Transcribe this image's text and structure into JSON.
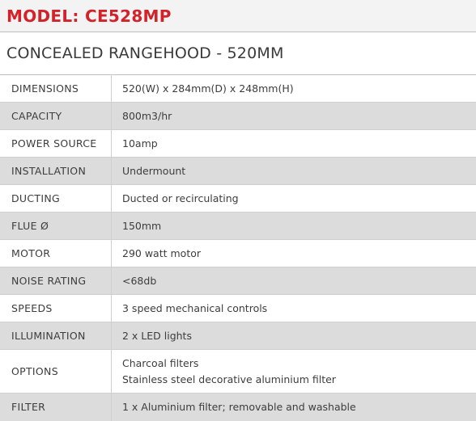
{
  "model": {
    "title": "MODEL: CE528MP"
  },
  "product": {
    "title": "CONCEALED RANGEHOOD - 520MM"
  },
  "colors": {
    "accent": "#d2232a",
    "row_shade": "#dcdcdc",
    "header_bg": "#f3f3f3"
  },
  "specs": [
    {
      "label": "DIMENSIONS",
      "value": "520(W) x 284mm(D) x 248mm(H)"
    },
    {
      "label": "CAPACITY",
      "value": "800m3/hr"
    },
    {
      "label": "POWER SOURCE",
      "value": "10amp"
    },
    {
      "label": "INSTALLATION",
      "value": "Undermount"
    },
    {
      "label": "DUCTING",
      "value": "Ducted or recirculating"
    },
    {
      "label": "FLUE Ø",
      "value": "150mm"
    },
    {
      "label": "MOTOR",
      "value": "290 watt motor"
    },
    {
      "label": "NOISE RATING",
      "value": "<68db"
    },
    {
      "label": "SPEEDS",
      "value": "3 speed mechanical controls"
    },
    {
      "label": "ILLUMINATION",
      "value": "2 x LED lights"
    },
    {
      "label": "OPTIONS",
      "values": [
        "Charcoal filters",
        "Stainless steel decorative aluminium filter"
      ]
    },
    {
      "label": "FILTER",
      "value": "1 x Aluminium filter; removable and washable"
    }
  ]
}
